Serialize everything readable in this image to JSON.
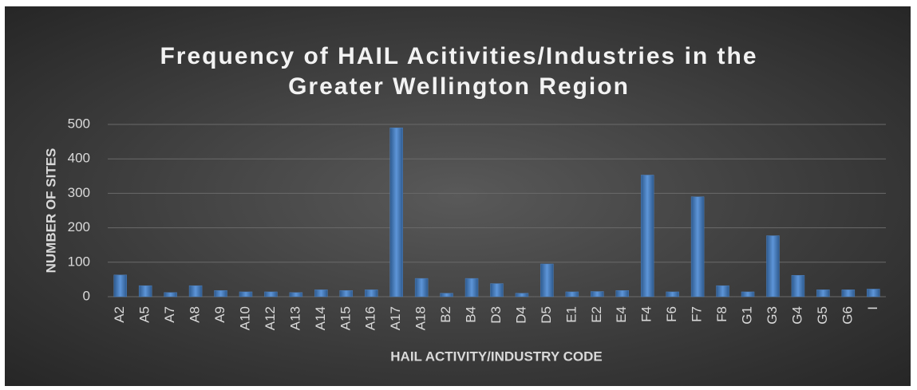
{
  "chart_data": {
    "type": "bar",
    "title": "Frequency of HAIL Acitivities/Industries in the Greater Wellington Region",
    "x_label": "HAIL ACTIVITY/INDUSTRY CODE",
    "y_label": "NUMBER OF SITES",
    "categories": [
      "A2",
      "A5",
      "A7",
      "A8",
      "A9",
      "A10",
      "A12",
      "A13",
      "A14",
      "A15",
      "A16",
      "A17",
      "A18",
      "B2",
      "B4",
      "D3",
      "D4",
      "D5",
      "E1",
      "E2",
      "E4",
      "F4",
      "F6",
      "F7",
      "F8",
      "G1",
      "G3",
      "G4",
      "G5",
      "G6",
      "I"
    ],
    "values": [
      63,
      32,
      12,
      32,
      18,
      14,
      14,
      12,
      20,
      18,
      20,
      490,
      53,
      10,
      53,
      38,
      10,
      95,
      14,
      15,
      18,
      353,
      14,
      290,
      32,
      14,
      177,
      62,
      20,
      20,
      22
    ],
    "color": "#4f81bd",
    "ylim": [
      0,
      500
    ],
    "yticks": [
      0,
      100,
      200,
      300,
      400,
      500
    ],
    "grid": true
  }
}
